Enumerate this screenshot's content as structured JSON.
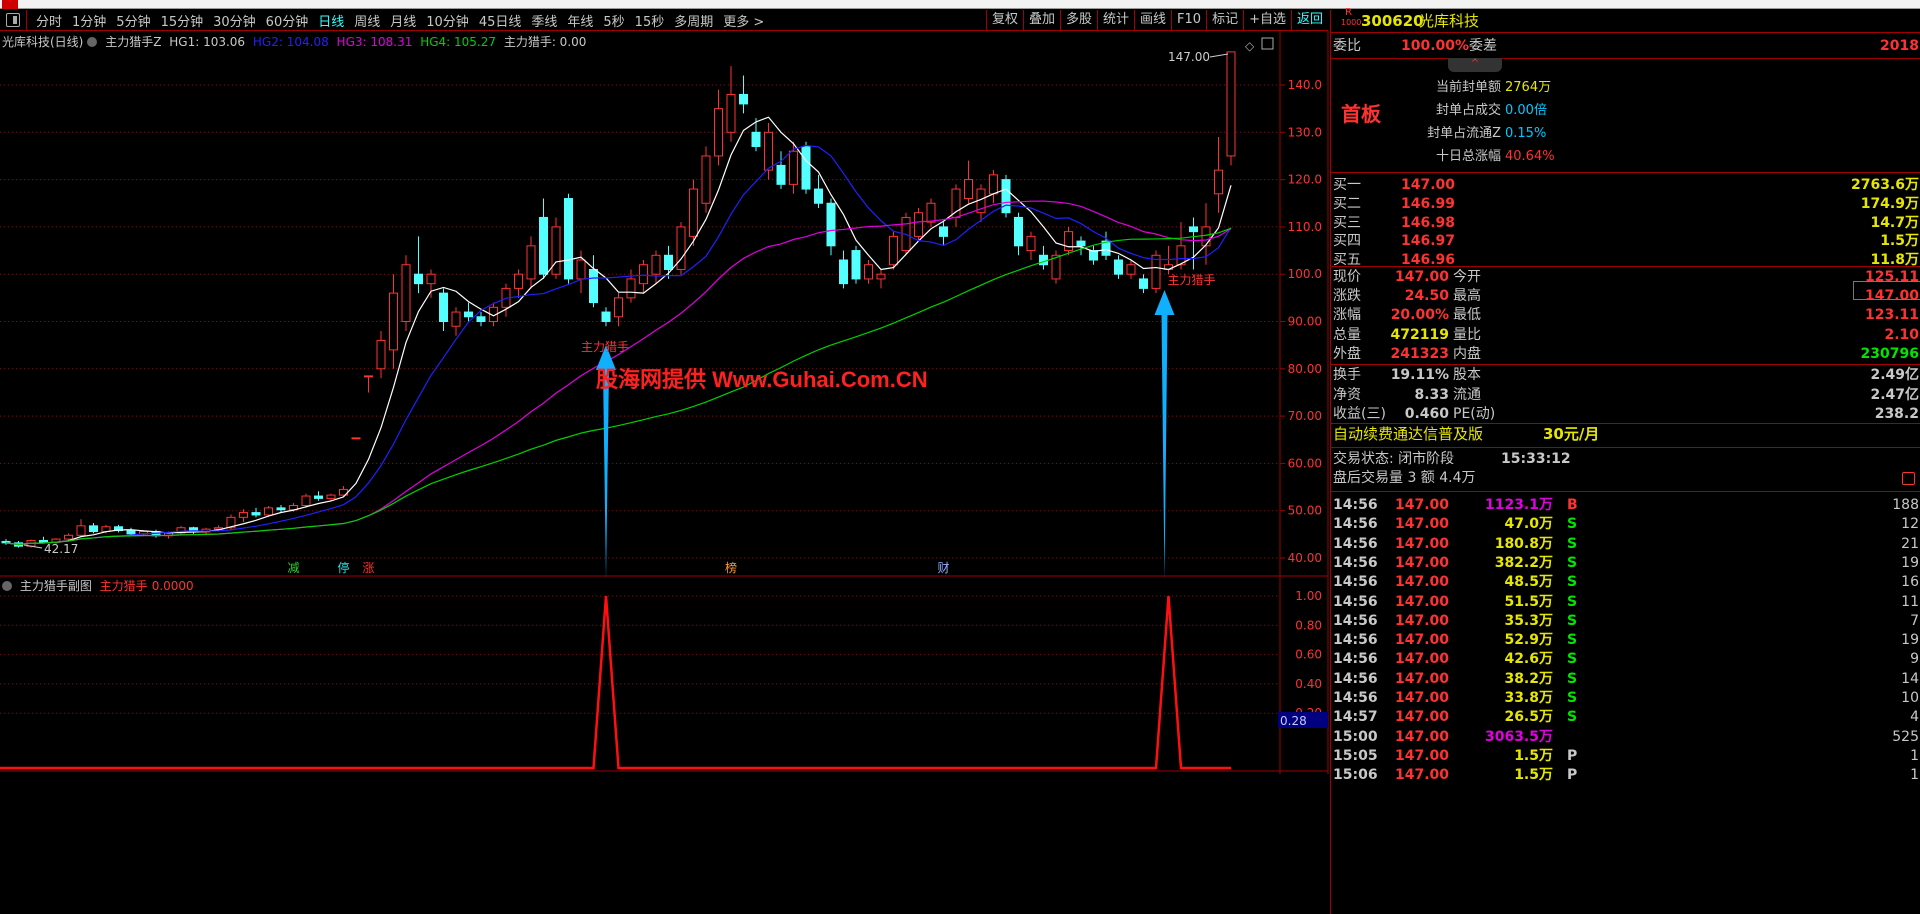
{
  "toolbar": {
    "periods": [
      "分时",
      "1分钟",
      "5分钟",
      "15分钟",
      "30分钟",
      "60分钟",
      "日线",
      "周线",
      "月线",
      "10分钟",
      "45日线",
      "季线",
      "年线",
      "5秒",
      "15秒",
      "多周期",
      "更多 >"
    ],
    "active": "日线",
    "buttons": [
      "复权",
      "叠加",
      "多股",
      "统计",
      "画线",
      "F10",
      "标记",
      "+自选",
      "返回"
    ]
  },
  "main_header": {
    "name": "光库科技(日线)",
    "indicator": "主力猎手Z",
    "hg1": "HG1: 103.06",
    "hg2": "HG2: 104.08",
    "hg3": "HG3: 108.31",
    "hg4": "HG4: 105.27",
    "signal": "主力猎手: 0.00"
  },
  "sub_header": {
    "name": "主力猎手副图",
    "series": "主力猎手",
    "value": "0.0000"
  },
  "watermark": "股海网提供 Www.Guhai.Com.CN",
  "colors": {
    "up": "#ff3232",
    "down": "#54ffff",
    "ma1": "#ffffff",
    "ma2": "#2020ff",
    "ma3": "#e000e0",
    "ma4": "#00d000",
    "arrow": "#10b0ff",
    "grid": "#a00000"
  },
  "chart_data": [
    {
      "type": "candlestick",
      "ylim": [
        38,
        148
      ],
      "yticks": [
        "140.0",
        "130.0",
        "120.0",
        "110.0",
        "100.0",
        "90.00",
        "80.00",
        "70.00",
        "60.00",
        "50.00",
        "40.00"
      ],
      "ohlc": [
        [
          43.5,
          44,
          42.8,
          43.2
        ],
        [
          43.2,
          43.6,
          42.2,
          42.5
        ],
        [
          42.5,
          43.9,
          42.2,
          43.7
        ],
        [
          43.7,
          44.5,
          43.1,
          43.3
        ],
        [
          43.3,
          44.2,
          42.9,
          44
        ],
        [
          44,
          45.2,
          43.6,
          44.8
        ],
        [
          44.8,
          48.2,
          44.5,
          46.8
        ],
        [
          46.8,
          47.4,
          45.2,
          45.6
        ],
        [
          45.6,
          47,
          45.2,
          46.6
        ],
        [
          46.6,
          47,
          45.4,
          45.8
        ],
        [
          45.8,
          46.4,
          44.6,
          45.1
        ],
        [
          45.1,
          45.9,
          44.6,
          45.6
        ],
        [
          45.6,
          46,
          44.3,
          44.7
        ],
        [
          44.7,
          45.6,
          44.1,
          45.3
        ],
        [
          45.3,
          46.8,
          44.9,
          46.4
        ],
        [
          46.4,
          46.6,
          45.1,
          45.5
        ],
        [
          45.5,
          46.4,
          45.1,
          46.1
        ],
        [
          46.1,
          46.9,
          45.6,
          46.4
        ],
        [
          46.4,
          49.2,
          46,
          48.6
        ],
        [
          48.6,
          50.3,
          47.6,
          49.6
        ],
        [
          49.6,
          50.6,
          48.6,
          49.1
        ],
        [
          49.1,
          51,
          48.7,
          50.6
        ],
        [
          50.6,
          51.2,
          49.6,
          50.2
        ],
        [
          50.2,
          51.6,
          49.8,
          51.1
        ],
        [
          51.1,
          53.6,
          50.6,
          53.1
        ],
        [
          53.1,
          54.1,
          52.1,
          52.6
        ],
        [
          52.6,
          53.6,
          52.1,
          53.3
        ],
        [
          53.3,
          55.2,
          53,
          54.5
        ],
        [
          65.4,
          65.4,
          65.4,
          65.4
        ],
        [
          78.5,
          78.5,
          75,
          78.5
        ],
        [
          80,
          88,
          78,
          86
        ],
        [
          84,
          100,
          80,
          96
        ],
        [
          90,
          104,
          88,
          102
        ],
        [
          100,
          108,
          96,
          98
        ],
        [
          98,
          101,
          95,
          100
        ],
        [
          96,
          97,
          88,
          90
        ],
        [
          89,
          93,
          87,
          92
        ],
        [
          92,
          94,
          90,
          91
        ],
        [
          91,
          92,
          89,
          90
        ],
        [
          90,
          94,
          89,
          93
        ],
        [
          93,
          98,
          91,
          97
        ],
        [
          97,
          101,
          95,
          100
        ],
        [
          99,
          108,
          97,
          106
        ],
        [
          112,
          116,
          99,
          100
        ],
        [
          100,
          112,
          99,
          110
        ],
        [
          116,
          117,
          98,
          99
        ],
        [
          99,
          105,
          96,
          103
        ],
        [
          101,
          104,
          93,
          94
        ],
        [
          92,
          93,
          89,
          90
        ],
        [
          91,
          96,
          89,
          95
        ],
        [
          95,
          101,
          94,
          99
        ],
        [
          98,
          103,
          96,
          102
        ],
        [
          100,
          105,
          98,
          104
        ],
        [
          104,
          106,
          99,
          101
        ],
        [
          101,
          111,
          100,
          110
        ],
        [
          108,
          120,
          106,
          118
        ],
        [
          115,
          127,
          113,
          125
        ],
        [
          125,
          139,
          123,
          135
        ],
        [
          130,
          144,
          128,
          138
        ],
        [
          138,
          142,
          134,
          136
        ],
        [
          130,
          133,
          126,
          127
        ],
        [
          122,
          132,
          120,
          130
        ],
        [
          123,
          126,
          118,
          119
        ],
        [
          119,
          128,
          117,
          126
        ],
        [
          127,
          128,
          117,
          118
        ],
        [
          118,
          121,
          114,
          115
        ],
        [
          115,
          116,
          104,
          106
        ],
        [
          103,
          105,
          97,
          98
        ],
        [
          105,
          106,
          98,
          99
        ],
        [
          99,
          103,
          98,
          102
        ],
        [
          99,
          101,
          97,
          100
        ],
        [
          102,
          109,
          101,
          108
        ],
        [
          105,
          113,
          104,
          112
        ],
        [
          108,
          114,
          107,
          113
        ],
        [
          111,
          116,
          110,
          115
        ],
        [
          110,
          111,
          106,
          108
        ],
        [
          112,
          119,
          110,
          118
        ],
        [
          116,
          124,
          115,
          120
        ],
        [
          113,
          119,
          111,
          118
        ],
        [
          117,
          122,
          115,
          121
        ],
        [
          120,
          121,
          112,
          113
        ],
        [
          112,
          113,
          104,
          106
        ],
        [
          105,
          109,
          103,
          108
        ],
        [
          104,
          106,
          101,
          102
        ],
        [
          99,
          105,
          98,
          104
        ],
        [
          105,
          110,
          104,
          109
        ],
        [
          107,
          108,
          104,
          106
        ],
        [
          105,
          106,
          102,
          103
        ],
        [
          107,
          109,
          103,
          104
        ],
        [
          103,
          104,
          99,
          100
        ],
        [
          100,
          103,
          99,
          102
        ],
        [
          99,
          100,
          96,
          97
        ],
        [
          97,
          105,
          96,
          104
        ],
        [
          101,
          106,
          100,
          102
        ],
        [
          102,
          111,
          101,
          106
        ],
        [
          110,
          112,
          101,
          109
        ],
        [
          106,
          115,
          102,
          110
        ],
        [
          117,
          129,
          113,
          122
        ],
        [
          125,
          147,
          123,
          147
        ]
      ],
      "ma_periods": [
        5,
        10,
        30,
        60
      ],
      "annotations": {
        "high": "147.00",
        "low": "42.17",
        "signal_label": "主力猎手",
        "signal_index": [
          48,
          93
        ]
      },
      "markers": [
        {
          "index": 23,
          "text": "减",
          "color": "#30d030"
        },
        {
          "index": 27,
          "text": "停",
          "color": "#30e0e0"
        },
        {
          "index": 29,
          "text": "涨",
          "color": "#ff3232"
        },
        {
          "index": 58,
          "text": "榜",
          "color": "#ff9a30"
        },
        {
          "index": 75,
          "text": "财",
          "color": "#90b0ff"
        }
      ]
    },
    {
      "type": "line",
      "name": "主力猎手",
      "ylim": [
        0,
        1
      ],
      "yticks": [
        "1.00",
        "0.80",
        "0.60",
        "0.40",
        "0.20"
      ],
      "cursor_value": "0.28",
      "signal_index": [
        48,
        93
      ]
    }
  ],
  "panel": {
    "badge_top": "R",
    "badge_bottom": "1000",
    "code": "300620",
    "name": "光库科技",
    "weibi_label": "委比",
    "weibi": "100.00%",
    "weicha_label": "委差",
    "weicha": "2018",
    "board": "首板",
    "info": [
      {
        "l": "当前封单额",
        "v": "2764万",
        "c": "y"
      },
      {
        "l": "封单占成交",
        "v": "0.00倍",
        "c": "c"
      },
      {
        "l": "封单占流通Z",
        "v": "0.15%",
        "c": "c"
      },
      {
        "l": "十日总涨幅",
        "v": "40.64%",
        "c": "r"
      }
    ],
    "bids": [
      {
        "l": "买一",
        "p": "147.00",
        "v": "2763.6万"
      },
      {
        "l": "买二",
        "p": "146.99",
        "v": "174.9万"
      },
      {
        "l": "买三",
        "p": "146.98",
        "v": "14.7万"
      },
      {
        "l": "买四",
        "p": "146.97",
        "v": "1.5万"
      },
      {
        "l": "买五",
        "p": "146.96",
        "v": "11.8万"
      }
    ],
    "quote": [
      {
        "l1": "现价",
        "v1": "147.00",
        "c1": "r",
        "l2": "今开",
        "v2": "125.11",
        "c2": "r"
      },
      {
        "l1": "涨跌",
        "v1": "24.50",
        "c1": "r",
        "l2": "最高",
        "v2": "147.00",
        "c2": "r"
      },
      {
        "l1": "涨幅",
        "v1": "20.00%",
        "c1": "r",
        "l2": "最低",
        "v2": "123.11",
        "c2": "r"
      },
      {
        "l1": "总量",
        "v1": "472119",
        "c1": "y",
        "l2": "量比",
        "v2": "2.10",
        "c2": "r"
      },
      {
        "l1": "外盘",
        "v1": "241323",
        "c1": "r",
        "l2": "内盘",
        "v2": "230796",
        "c2": "g"
      }
    ],
    "fund": [
      {
        "l1": "换手",
        "v1": "19.11%",
        "l2": "股本",
        "v2": "2.49亿"
      },
      {
        "l1": "净资",
        "v1": "8.33",
        "l2": "流通",
        "v2": "2.47亿"
      },
      {
        "l1": "收益(三)",
        "v1": "0.460",
        "l2": "PE(动)",
        "v2": "238.2"
      }
    ],
    "promo": "自动续费通达信普及版",
    "promo_price": "30元/月",
    "status": "交易状态: 闭市阶段",
    "status_time": "15:33:12",
    "after": "盘后交易量 3 额 4.4万",
    "ticks": [
      [
        "14:56",
        "147.00",
        "1123.1万",
        "B",
        "188"
      ],
      [
        "14:56",
        "147.00",
        "47.0万",
        "S",
        "12"
      ],
      [
        "14:56",
        "147.00",
        "180.8万",
        "S",
        "21"
      ],
      [
        "14:56",
        "147.00",
        "382.2万",
        "S",
        "19"
      ],
      [
        "14:56",
        "147.00",
        "48.5万",
        "S",
        "16"
      ],
      [
        "14:56",
        "147.00",
        "51.5万",
        "S",
        "11"
      ],
      [
        "14:56",
        "147.00",
        "35.3万",
        "S",
        "7"
      ],
      [
        "14:56",
        "147.00",
        "52.9万",
        "S",
        "19"
      ],
      [
        "14:56",
        "147.00",
        "42.6万",
        "S",
        "9"
      ],
      [
        "14:56",
        "147.00",
        "38.2万",
        "S",
        "14"
      ],
      [
        "14:56",
        "147.00",
        "33.8万",
        "S",
        "10"
      ],
      [
        "14:57",
        "147.00",
        "26.5万",
        "S",
        "4"
      ],
      [
        "15:00",
        "147.00",
        "3063.5万",
        "",
        "525"
      ],
      [
        "15:05",
        "147.00",
        "1.5万",
        "P",
        "1"
      ],
      [
        "15:06",
        "147.00",
        "1.5万",
        "P",
        "1"
      ]
    ]
  }
}
